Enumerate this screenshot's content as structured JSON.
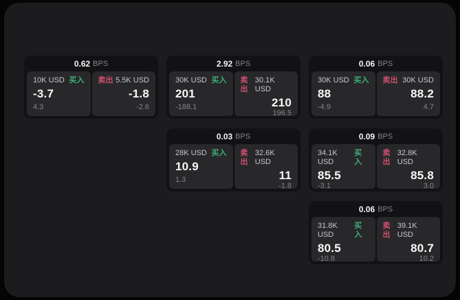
{
  "labels": {
    "bps_unit": "BPS",
    "buy": "买入",
    "sell": "卖出"
  },
  "colors": {
    "buy_green": "#3fae74",
    "sell_red": "#cf4f6e",
    "price_white": "#f7f7f8",
    "muted_gray": "#85858a",
    "panel_bg": "#1c1c1e",
    "card_bg": "#121214",
    "tile_bg": "#28282a"
  },
  "cards": [
    {
      "bps": "0.62",
      "buy": {
        "amount": "10K USD",
        "price": "-3.7",
        "delta": "4.3"
      },
      "sell": {
        "amount": "5.5K USD",
        "price": "-1.8",
        "delta": "-2.6"
      }
    },
    {
      "bps": "2.92",
      "buy": {
        "amount": "30K USD",
        "price": "201",
        "delta": "-188.1"
      },
      "sell": {
        "amount": "30.1K USD",
        "price": "210",
        "delta": "196.5"
      }
    },
    {
      "bps": "0.06",
      "buy": {
        "amount": "30K USD",
        "price": "88",
        "delta": "-4.9"
      },
      "sell": {
        "amount": "30K USD",
        "price": "88.2",
        "delta": "4.7"
      }
    },
    {
      "bps": "0.03",
      "buy": {
        "amount": "28K USD",
        "price": "10.9",
        "delta": "1.3"
      },
      "sell": {
        "amount": "32.6K USD",
        "price": "11",
        "delta": "-1.8"
      }
    },
    {
      "bps": "0.09",
      "buy": {
        "amount": "34.1K USD",
        "price": "85.5",
        "delta": "-3.1"
      },
      "sell": {
        "amount": "32.8K USD",
        "price": "85.8",
        "delta": "3.0"
      }
    },
    {
      "bps": "0.06",
      "buy": {
        "amount": "31.8K USD",
        "price": "80.5",
        "delta": "-10.8"
      },
      "sell": {
        "amount": "39.1K USD",
        "price": "80.7",
        "delta": "10.2"
      }
    }
  ]
}
